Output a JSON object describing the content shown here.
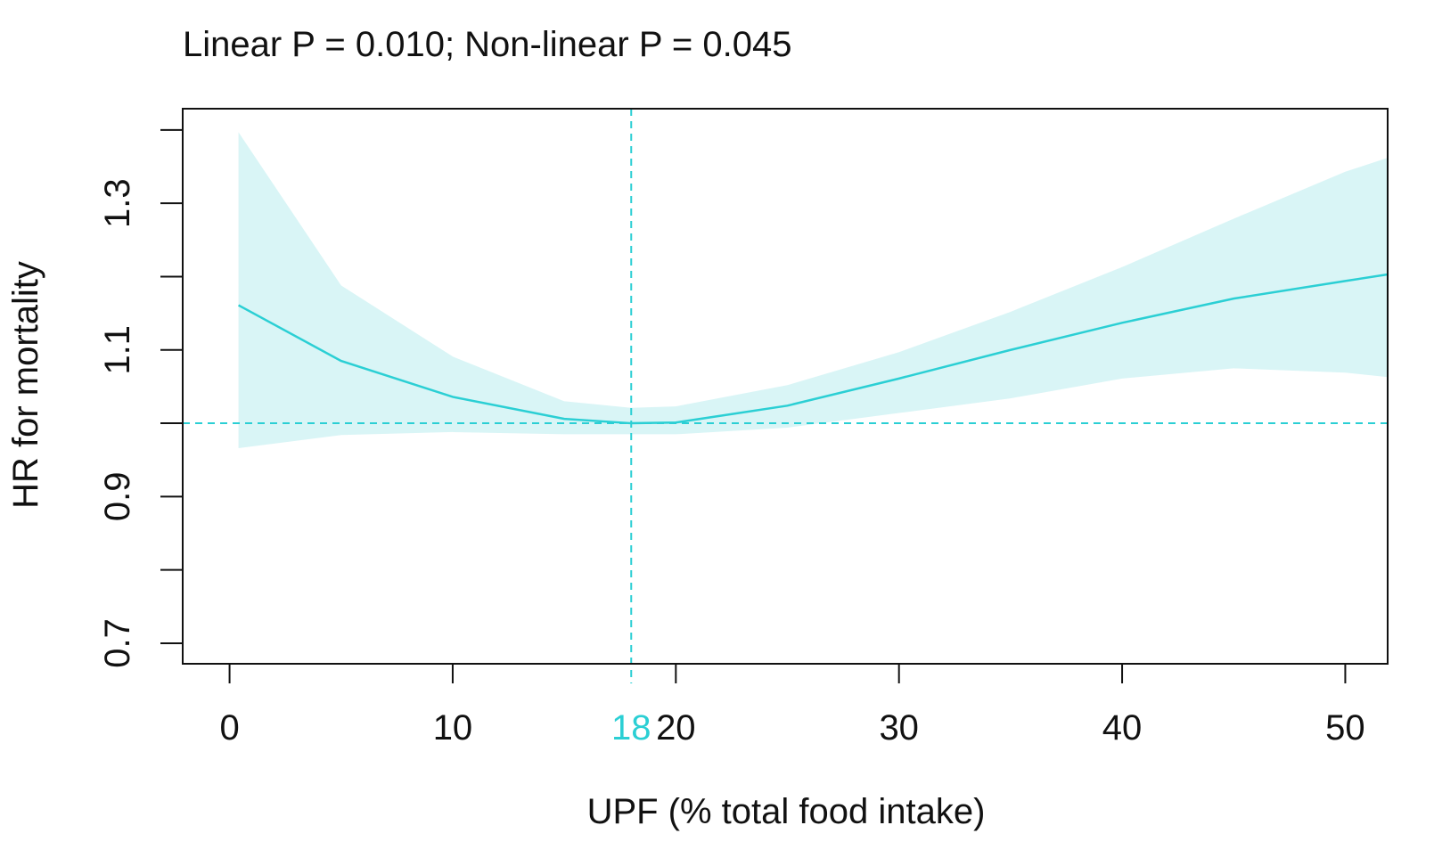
{
  "chart_data": {
    "type": "spline",
    "title": "Linear P = 0.010; Non-linear P = 0.045",
    "xlabel": "UPF (% total food intake)",
    "ylabel": "HR for mortality",
    "x": [
      0.4,
      5,
      10,
      15,
      18,
      20,
      25,
      30,
      35,
      40,
      45,
      50,
      51.9
    ],
    "values": [
      1.161,
      1.085,
      1.036,
      1.006,
      1.0,
      1.001,
      1.024,
      1.061,
      1.1,
      1.137,
      1.17,
      1.194,
      1.203
    ],
    "upper": [
      1.397,
      1.188,
      1.091,
      1.03,
      1.021,
      1.023,
      1.052,
      1.097,
      1.152,
      1.213,
      1.279,
      1.343,
      1.362
    ],
    "lower": [
      0.966,
      0.984,
      0.988,
      0.985,
      0.985,
      0.985,
      0.994,
      1.014,
      1.034,
      1.061,
      1.075,
      1.069,
      1.063
    ],
    "color": "#2bcfd4",
    "band_color": "#d9f5f6",
    "reference_x": 18,
    "reference_y": 1,
    "xlim": [
      -2.1,
      51.9
    ],
    "xticks": [
      0,
      10,
      20,
      30,
      40,
      50
    ],
    "ylim": [
      0.672,
      1.429
    ],
    "yticks": [
      0.7,
      0.9,
      1.1,
      1.3
    ],
    "yminor_ticks": [
      0.8,
      1.0,
      1.2,
      1.4
    ]
  }
}
